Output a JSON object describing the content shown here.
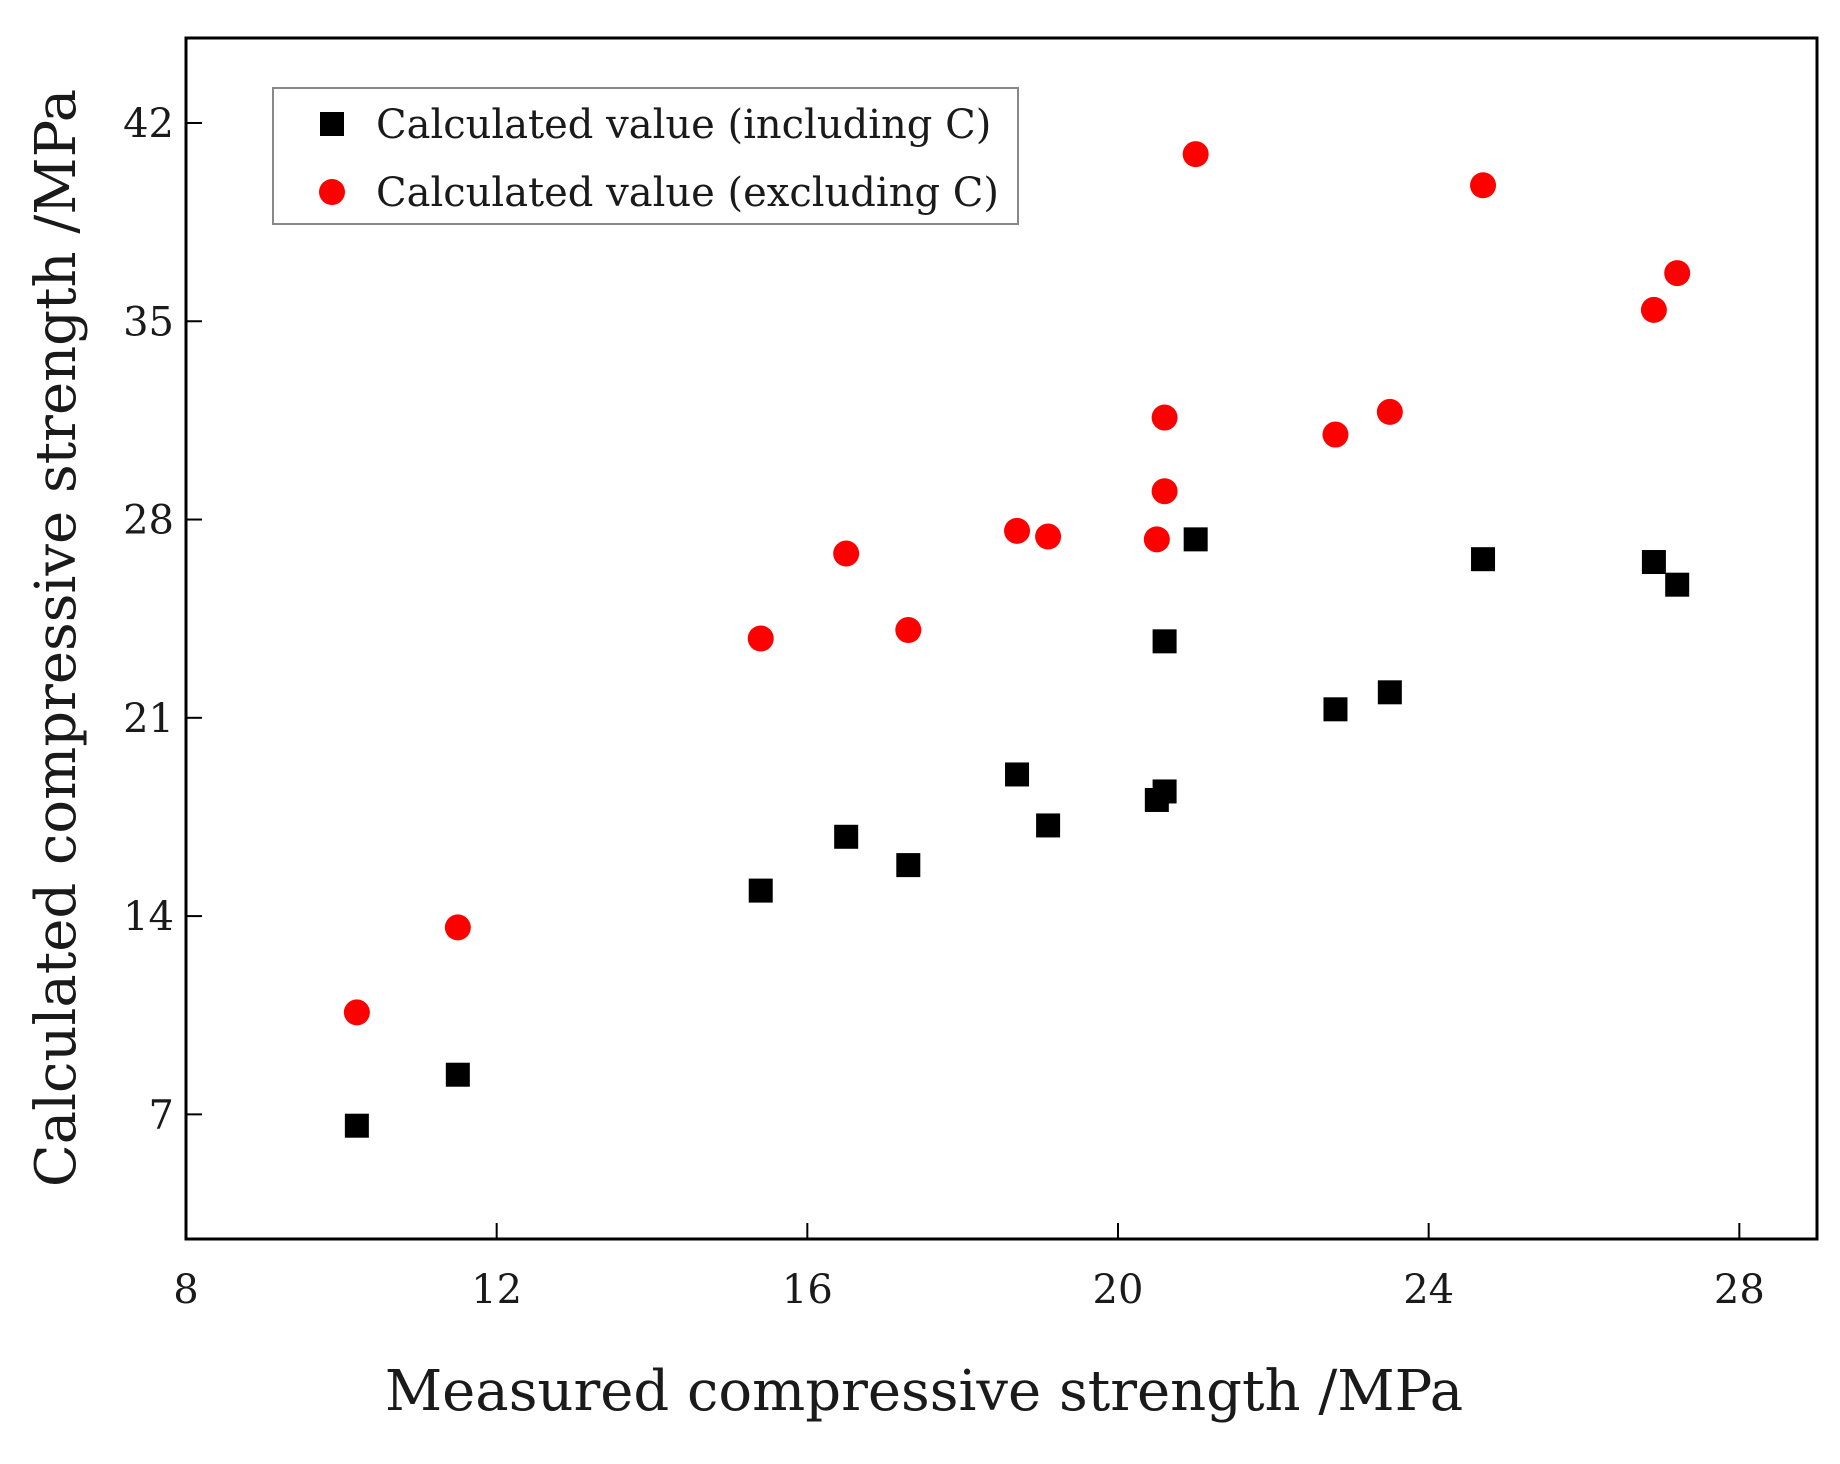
{
  "chart_data": {
    "type": "scatter",
    "title": "",
    "xlabel": "Measured compressive strength /MPa",
    "ylabel": "Calculated compressive strength /MPa",
    "xlim": [
      8,
      29
    ],
    "ylim": [
      2.6,
      45
    ],
    "xticks": [
      8,
      12,
      16,
      20,
      24,
      28
    ],
    "yticks": [
      7,
      14,
      21,
      28,
      35,
      42
    ],
    "grid": false,
    "legend": "top-left",
    "series": [
      {
        "name": "Calculated value (including C)",
        "marker": "square",
        "color": "#000000",
        "x": [
          10.2,
          11.5,
          15.4,
          16.5,
          17.3,
          18.7,
          19.1,
          20.5,
          20.6,
          20.6,
          21.0,
          22.8,
          23.5,
          24.7,
          26.9,
          27.2
        ],
        "y": [
          6.6,
          8.4,
          14.9,
          16.8,
          15.8,
          19.0,
          17.2,
          18.1,
          18.4,
          23.7,
          27.3,
          21.3,
          21.9,
          26.6,
          26.5,
          25.7
        ]
      },
      {
        "name": "Calculated value (excluding C)",
        "marker": "circle",
        "color": "#ff0000",
        "x": [
          10.2,
          11.5,
          15.4,
          16.5,
          17.3,
          18.7,
          19.1,
          20.5,
          20.6,
          20.6,
          21.0,
          22.8,
          23.5,
          24.7,
          26.9,
          27.2
        ],
        "y": [
          10.6,
          13.6,
          23.8,
          26.8,
          24.1,
          27.6,
          27.4,
          27.3,
          29.0,
          31.6,
          40.9,
          31.0,
          31.8,
          39.8,
          35.4,
          36.7
        ]
      }
    ]
  }
}
